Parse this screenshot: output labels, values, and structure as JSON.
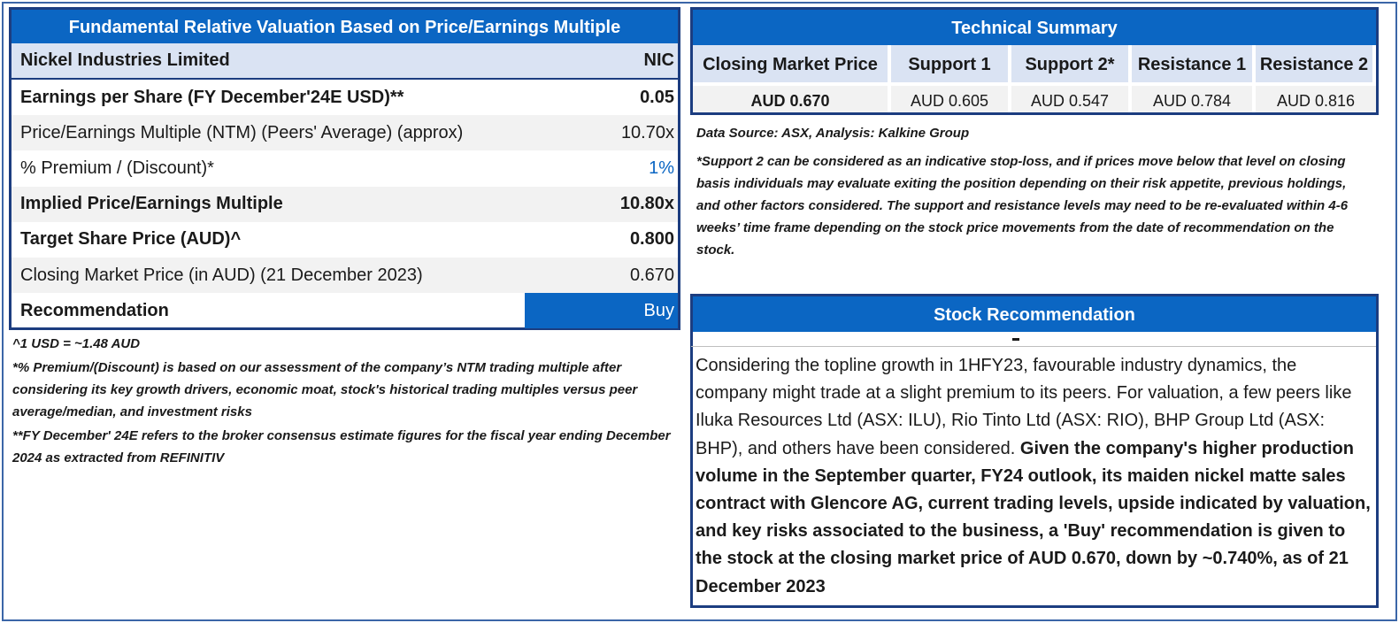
{
  "valuation": {
    "title": "Fundamental Relative Valuation Based on Price/Earnings Multiple",
    "company_name": "Nickel Industries Limited",
    "ticker": "NIC",
    "rows": [
      {
        "label": "Earnings per Share (FY December'24E USD)**",
        "value": "0.05",
        "bold": true
      },
      {
        "label": "Price/Earnings Multiple (NTM)  (Peers' Average) (approx)",
        "value": "10.70x",
        "bold": false
      },
      {
        "label": "% Premium / (Discount)*",
        "value": "1%",
        "bold": false
      },
      {
        "label": "Implied Price/Earnings Multiple",
        "value": "10.80x",
        "bold": true
      },
      {
        "label": "Target Share Price (AUD)^",
        "value": "0.800",
        "bold": true
      },
      {
        "label": "Closing Market Price (in AUD) (21 December 2023)",
        "value": "0.670",
        "bold": false
      }
    ],
    "recommendation_label": "Recommendation",
    "recommendation_value": "Buy",
    "accent_color": "#0b66c3"
  },
  "left_notes": {
    "fx": "^1 USD = ~1.48 AUD",
    "premium": "*% Premium/(Discount) is based on our assessment of the company’s NTM trading multiple after considering its key growth drivers, economic moat, stock's historical trading multiples versus peer average/median, and investment risks",
    "fy": " **FY December' 24E refers to the broker consensus estimate figures for the fiscal year ending December 2024  as extracted from REFINITIV"
  },
  "technical": {
    "title": "Technical Summary",
    "headers": [
      "Closing Market Price",
      "Support 1",
      "Support 2*",
      "Resistance 1",
      "Resistance 2"
    ],
    "values": [
      "AUD 0.670",
      "AUD 0.605",
      "AUD 0.547",
      "AUD 0.784",
      "AUD 0.816"
    ],
    "source": "Data Source: ASX, Analysis: Kalkine Group",
    "disclaimer": "*Support 2 can be considered as an indicative stop-loss, and if prices move below that level on closing basis individuals may evaluate exiting the position depending on their risk appetite, previous holdings, and other factors considered. The support and resistance levels may need to be re-evaluated within 4-6 weeks’ time frame depending on the stock price movements from the date of recommendation on the stock."
  },
  "stock_recommendation": {
    "title": "Stock Recommendation",
    "intro": "Considering the topline growth in 1HFY23, favourable industry dynamics, the company might trade at a slight premium to its peers. For valuation, a few peers like Iluka Resources Ltd (ASX: ILU), Rio Tinto Ltd (ASX: RIO), BHP Group Ltd (ASX: BHP), and others have been considered. ",
    "conclusion": "Given the company's higher production volume in the September quarter, FY24 outlook, its maiden nickel matte sales contract with Glencore AG, current trading levels, upside indicated by valuation, and key risks associated to the business, a 'Buy' recommendation is given to the stock at the closing market price of AUD 0.670, down by ~0.740%,  as of 21 December 2023"
  }
}
